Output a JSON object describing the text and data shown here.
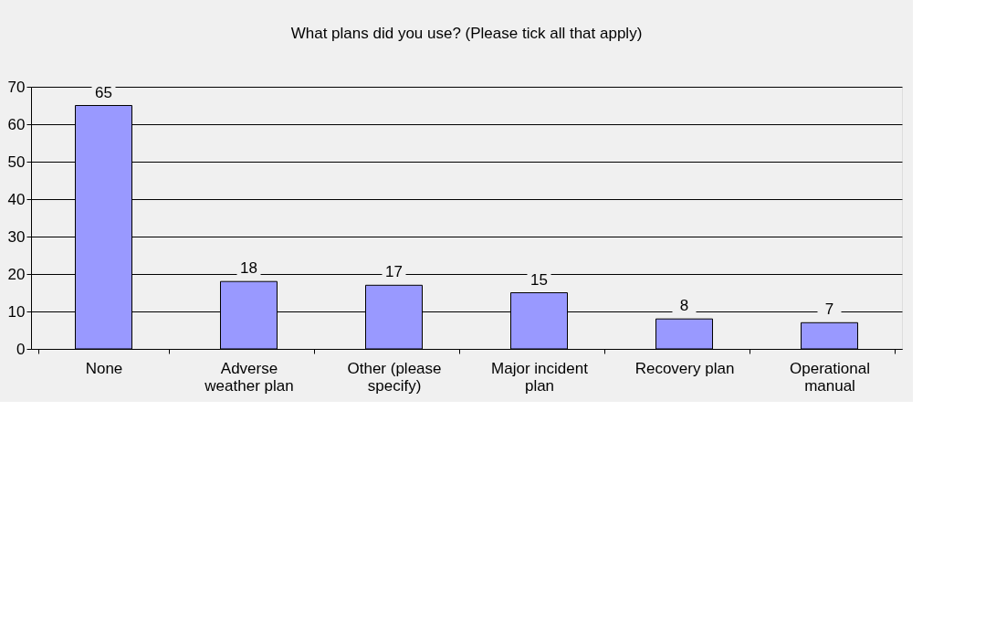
{
  "chart_data": {
    "type": "bar",
    "title": "What plans did you use? (Please tick all that apply)",
    "categories": [
      "None",
      "Adverse weather plan",
      "Other (please specify)",
      "Major incident plan",
      "Recovery plan",
      "Operational manual"
    ],
    "values": [
      65,
      18,
      17,
      15,
      8,
      7
    ],
    "color": "#9999ff",
    "ylim": [
      0,
      70
    ],
    "yticks": [
      0,
      10,
      20,
      30,
      40,
      50,
      60,
      70
    ],
    "grid": "y",
    "data_labels": true
  }
}
